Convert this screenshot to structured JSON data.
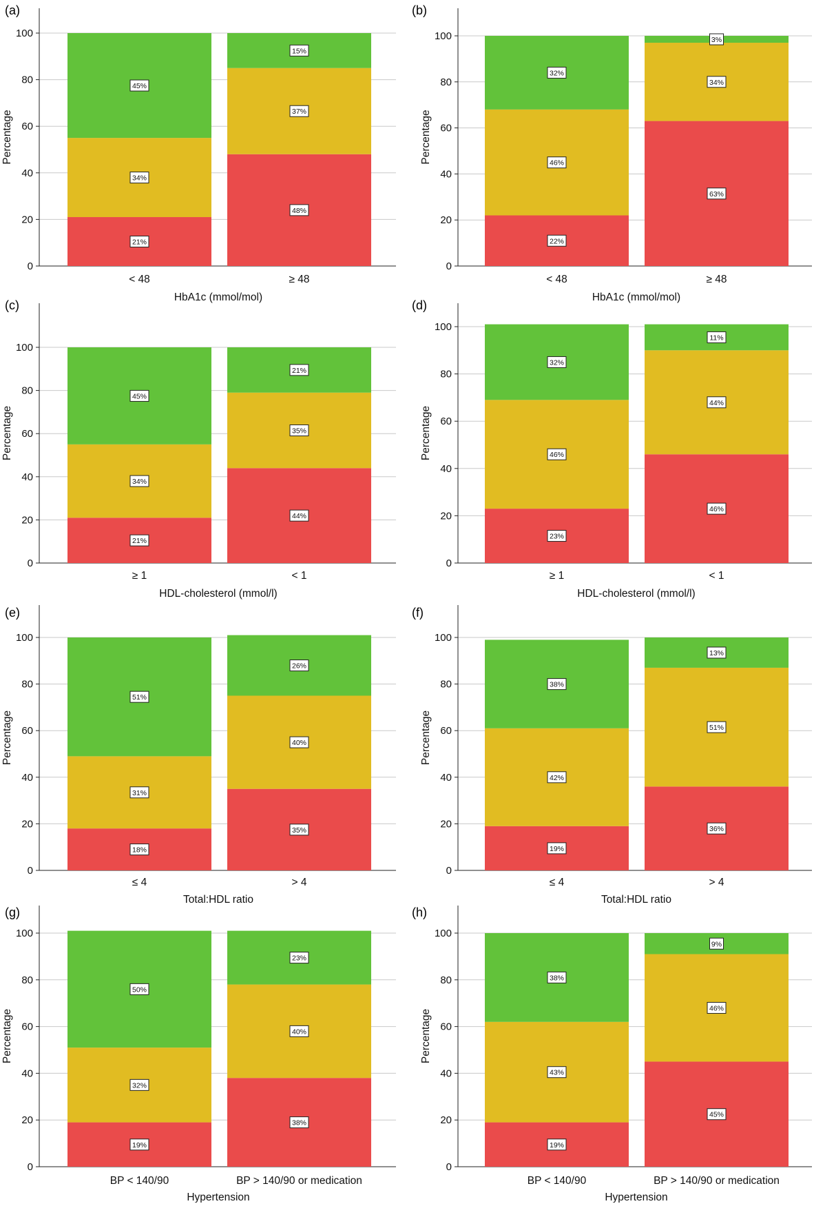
{
  "chart_data": [
    {
      "panel": "(a)",
      "type": "bar",
      "stacked": true,
      "categories": [
        "< 48",
        "≥ 48"
      ],
      "xlabel": "HbA1c (mmol/mol)",
      "ylabel": "Percentage",
      "ylim": [
        0,
        110
      ],
      "yticks": [
        0,
        20,
        40,
        60,
        80,
        100
      ],
      "grid": "horizontal",
      "series": [
        {
          "color": "#ea4b4b",
          "values": [
            21,
            48
          ],
          "labels": [
            "21%",
            "48%"
          ]
        },
        {
          "color": "#e1bc22",
          "values": [
            34,
            37
          ],
          "labels": [
            "34%",
            "37%"
          ]
        },
        {
          "color": "#62c23a",
          "values": [
            45,
            15
          ],
          "labels": [
            "45%",
            "15%"
          ]
        }
      ]
    },
    {
      "panel": "(b)",
      "type": "bar",
      "stacked": true,
      "categories": [
        "< 48",
        "≥ 48"
      ],
      "xlabel": "HbA1c (mmol/mol)",
      "ylabel": "Percentage",
      "ylim": [
        0,
        110
      ],
      "yticks": [
        0,
        20,
        40,
        60,
        80,
        100
      ],
      "grid": "horizontal",
      "series": [
        {
          "color": "#ea4b4b",
          "values": [
            22,
            63
          ],
          "labels": [
            "22%",
            "63%"
          ]
        },
        {
          "color": "#e1bc22",
          "values": [
            46,
            34
          ],
          "labels": [
            "46%",
            "34%"
          ]
        },
        {
          "color": "#62c23a",
          "values": [
            32,
            3
          ],
          "labels": [
            "32%",
            "3%"
          ]
        }
      ]
    },
    {
      "panel": "(c)",
      "type": "bar",
      "stacked": true,
      "categories": [
        "≥ 1",
        "< 1"
      ],
      "xlabel": "HDL-cholesterol (mmol/l)",
      "ylabel": "Percentage",
      "ylim": [
        0,
        110
      ],
      "yticks": [
        0,
        20,
        40,
        60,
        80,
        100
      ],
      "grid": "horizontal",
      "series": [
        {
          "color": "#ea4b4b",
          "values": [
            21,
            44
          ],
          "labels": [
            "21%",
            "44%"
          ]
        },
        {
          "color": "#e1bc22",
          "values": [
            34,
            35
          ],
          "labels": [
            "34%",
            "35%"
          ]
        },
        {
          "color": "#62c23a",
          "values": [
            45,
            21
          ],
          "labels": [
            "45%",
            "21%"
          ]
        }
      ]
    },
    {
      "panel": "(d)",
      "type": "bar",
      "stacked": true,
      "categories": [
        "≥ 1",
        "< 1"
      ],
      "xlabel": "HDL-cholesterol (mmol/l)",
      "ylabel": "Percentage",
      "ylim": [
        0,
        110
      ],
      "yticks": [
        0,
        20,
        40,
        60,
        80,
        100
      ],
      "grid": "horizontal",
      "series": [
        {
          "color": "#ea4b4b",
          "values": [
            23,
            46
          ],
          "labels": [
            "23%",
            "46%"
          ]
        },
        {
          "color": "#e1bc22",
          "values": [
            46,
            44
          ],
          "labels": [
            "46%",
            "44%"
          ]
        },
        {
          "color": "#62c23a",
          "values": [
            32,
            11
          ],
          "labels": [
            "32%",
            "11%"
          ]
        }
      ]
    },
    {
      "panel": "(e)",
      "type": "bar",
      "stacked": true,
      "categories": [
        "≤ 4",
        "> 4"
      ],
      "xlabel": "Total:HDL ratio",
      "ylabel": "Percentage",
      "ylim": [
        0,
        110
      ],
      "yticks": [
        0,
        20,
        40,
        60,
        80,
        100
      ],
      "grid": "horizontal",
      "series": [
        {
          "color": "#ea4b4b",
          "values": [
            18,
            35
          ],
          "labels": [
            "18%",
            "35%"
          ]
        },
        {
          "color": "#e1bc22",
          "values": [
            31,
            40
          ],
          "labels": [
            "31%",
            "40%"
          ]
        },
        {
          "color": "#62c23a",
          "values": [
            51,
            26
          ],
          "labels": [
            "51%",
            "26%"
          ]
        }
      ]
    },
    {
      "panel": "(f)",
      "type": "bar",
      "stacked": true,
      "categories": [
        "≤ 4",
        "> 4"
      ],
      "xlabel": "Total:HDL ratio",
      "ylabel": "Percentage",
      "ylim": [
        0,
        110
      ],
      "yticks": [
        0,
        20,
        40,
        60,
        80,
        100
      ],
      "grid": "horizontal",
      "series": [
        {
          "color": "#ea4b4b",
          "values": [
            19,
            36
          ],
          "labels": [
            "19%",
            "36%"
          ]
        },
        {
          "color": "#e1bc22",
          "values": [
            42,
            51
          ],
          "labels": [
            "42%",
            "51%"
          ]
        },
        {
          "color": "#62c23a",
          "values": [
            38,
            13
          ],
          "labels": [
            "38%",
            "13%"
          ]
        }
      ]
    },
    {
      "panel": "(g)",
      "type": "bar",
      "stacked": true,
      "categories": [
        "BP < 140/90",
        "BP > 140/90 or medication"
      ],
      "xlabel": "Hypertension",
      "ylabel": "Percentage",
      "ylim": [
        0,
        110
      ],
      "yticks": [
        0,
        20,
        40,
        60,
        80,
        100
      ],
      "grid": "horizontal",
      "series": [
        {
          "color": "#ea4b4b",
          "values": [
            19,
            38
          ],
          "labels": [
            "19%",
            "38%"
          ]
        },
        {
          "color": "#e1bc22",
          "values": [
            32,
            40
          ],
          "labels": [
            "32%",
            "40%"
          ]
        },
        {
          "color": "#62c23a",
          "values": [
            50,
            23
          ],
          "labels": [
            "50%",
            "23%"
          ]
        }
      ]
    },
    {
      "panel": "(h)",
      "type": "bar",
      "stacked": true,
      "categories": [
        "BP < 140/90",
        "BP > 140/90 or medication"
      ],
      "xlabel": "Hypertension",
      "ylabel": "Percentage",
      "ylim": [
        0,
        110
      ],
      "yticks": [
        0,
        20,
        40,
        60,
        80,
        100
      ],
      "grid": "horizontal",
      "series": [
        {
          "color": "#ea4b4b",
          "values": [
            19,
            45
          ],
          "labels": [
            "19%",
            "45%"
          ]
        },
        {
          "color": "#e1bc22",
          "values": [
            43,
            46
          ],
          "labels": [
            "43%",
            "46%"
          ]
        },
        {
          "color": "#62c23a",
          "values": [
            38,
            9
          ],
          "labels": [
            "38%",
            "9%"
          ]
        }
      ]
    }
  ]
}
